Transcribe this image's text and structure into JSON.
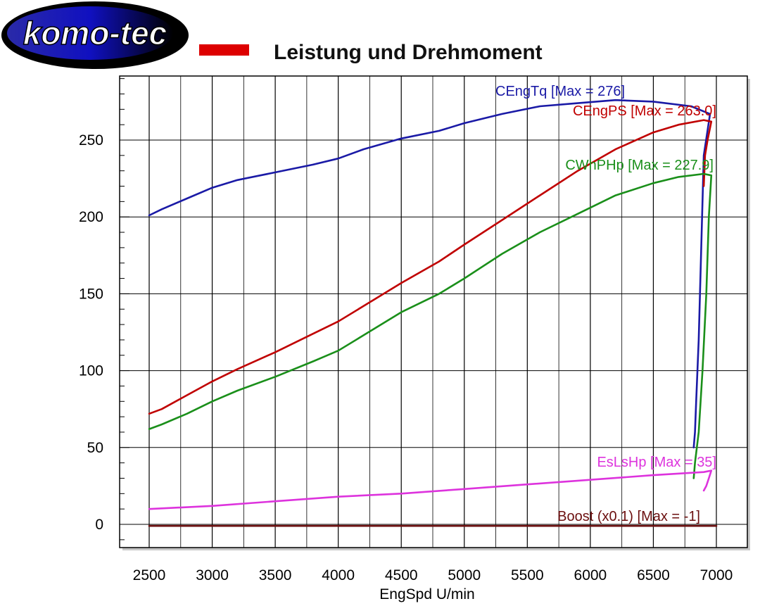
{
  "header": {
    "logo_text": "komo-tec",
    "title": "Leistung und Drehmoment",
    "legend_color": "#dd0000"
  },
  "chart_data": {
    "type": "line",
    "title": "Leistung und Drehmoment",
    "xlabel": "EngSpd U/min",
    "ylabel": "",
    "xlim": [
      2500,
      7000
    ],
    "ylim": [
      -15,
      285
    ],
    "x_ticks": [
      2500,
      3000,
      3500,
      4000,
      4500,
      5000,
      5500,
      6000,
      6500,
      7000
    ],
    "y_ticks": [
      0,
      50,
      100,
      150,
      200,
      250
    ],
    "grid": true,
    "series": [
      {
        "name": "CEngTq",
        "label": "CEngTq [Max = 276]",
        "color": "#1a1aa6",
        "x": [
          2500,
          2600,
          2800,
          3000,
          3200,
          3500,
          3800,
          4000,
          4200,
          4500,
          4800,
          5000,
          5300,
          5600,
          5900,
          6200,
          6500,
          6800,
          6950,
          6900,
          6880,
          6860,
          6840,
          6830,
          6820
        ],
        "y": [
          201,
          205,
          212,
          219,
          224,
          229,
          234,
          238,
          244,
          251,
          256,
          261,
          267,
          272,
          274,
          276,
          275,
          272,
          267,
          240,
          180,
          120,
          80,
          60,
          50
        ]
      },
      {
        "name": "CEngPS",
        "label": "CEngPS [Max = 263.0]",
        "color": "#c00000",
        "x": [
          2500,
          2600,
          2800,
          3000,
          3200,
          3500,
          3800,
          4000,
          4200,
          4500,
          4800,
          5000,
          5300,
          5600,
          5900,
          6200,
          6500,
          6700,
          6900,
          6960,
          6930,
          6910,
          6900
        ],
        "y": [
          72,
          75,
          84,
          93,
          101,
          112,
          124,
          132,
          142,
          157,
          171,
          182,
          198,
          214,
          230,
          244,
          255,
          260,
          263,
          262,
          250,
          240,
          220
        ]
      },
      {
        "name": "CWhPHp",
        "label": "CWhPHp [Max = 227.9]",
        "color": "#1a8f1a",
        "x": [
          2500,
          2600,
          2800,
          3000,
          3200,
          3500,
          3800,
          4000,
          4200,
          4500,
          4800,
          5000,
          5300,
          5600,
          5900,
          6200,
          6500,
          6700,
          6900,
          6960,
          6940,
          6920,
          6890,
          6860,
          6830,
          6820
        ],
        "y": [
          62,
          65,
          72,
          80,
          87,
          96,
          106,
          113,
          123,
          138,
          150,
          160,
          176,
          190,
          202,
          214,
          222,
          226,
          228,
          227,
          200,
          150,
          100,
          60,
          40,
          30
        ]
      },
      {
        "name": "EsLsHp",
        "label": "EsLsHp [Max = 35]",
        "color": "#dd33dd",
        "x": [
          2500,
          3000,
          3500,
          4000,
          4500,
          5000,
          5500,
          6000,
          6500,
          6900,
          6960,
          6940,
          6920,
          6900
        ],
        "y": [
          10,
          12,
          15,
          18,
          20,
          23,
          26,
          29,
          32,
          34,
          35,
          30,
          25,
          22
        ]
      },
      {
        "name": "Boost",
        "label": "Boost (x0.1) [Max = -1]",
        "color": "#6b0f0f",
        "x": [
          2500,
          3000,
          3500,
          4000,
          4500,
          5000,
          5500,
          6000,
          6500,
          7000
        ],
        "y": [
          -1,
          -1,
          -1,
          -1,
          -1,
          -1,
          -1,
          -1,
          -1,
          -1
        ]
      }
    ]
  }
}
